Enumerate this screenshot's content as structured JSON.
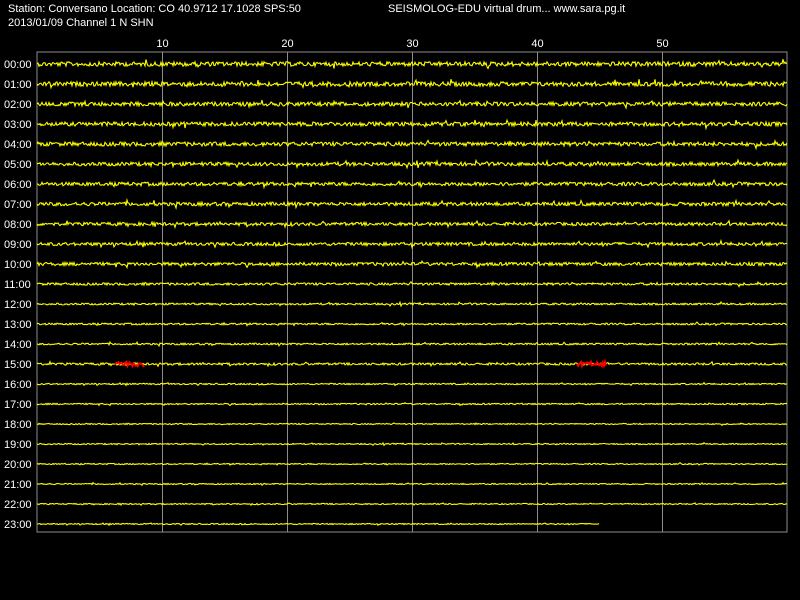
{
  "header": {
    "station_line": "Station: Conversano Location: CO 40.9712 17.1028 SPS:50",
    "date_line": "2013/01/09  Channel 1 N SHN",
    "app_line": "SEISMOLOG-EDU virtual drum... www.sara.pg.it"
  },
  "chart_data": {
    "type": "line",
    "title": "",
    "xlabel": "",
    "ylabel": "",
    "x_ticks": [
      10,
      20,
      30,
      40,
      50
    ],
    "xlim": [
      0,
      60
    ],
    "rows": [
      "00:00",
      "01:00",
      "02:00",
      "03:00",
      "04:00",
      "05:00",
      "06:00",
      "07:00",
      "08:00",
      "09:00",
      "10:00",
      "11:00",
      "12:00",
      "13:00",
      "14:00",
      "15:00",
      "16:00",
      "17:00",
      "18:00",
      "19:00",
      "20:00",
      "21:00",
      "22:00",
      "23:00"
    ],
    "row_noise": [
      2.2,
      2.2,
      2.0,
      2.0,
      2.0,
      1.8,
      1.8,
      1.8,
      1.6,
      1.6,
      1.6,
      1.2,
      0.9,
      0.9,
      0.9,
      1.1,
      0.7,
      0.7,
      0.6,
      0.6,
      0.6,
      0.6,
      0.6,
      0.6
    ],
    "last_row_end_minute": 45,
    "events": [
      {
        "row": "15:00",
        "start_minute": 6.2,
        "end_minute": 8.6
      },
      {
        "row": "15:00",
        "start_minute": 43.2,
        "end_minute": 45.6
      }
    ],
    "grid": true,
    "colors": {
      "background": "#000000",
      "trace": "#ffff00",
      "event": "#ff0000",
      "grid": "#8c8c8c",
      "text": "#ffffff"
    }
  }
}
